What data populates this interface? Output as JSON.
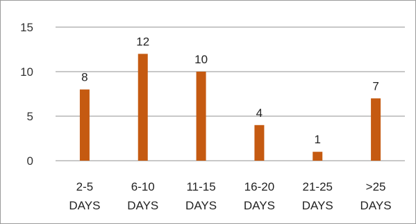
{
  "chart_data": {
    "type": "bar",
    "categories": [
      [
        "2-5",
        "DAYS"
      ],
      [
        "6-10",
        "DAYS"
      ],
      [
        "11-15",
        "DAYS"
      ],
      [
        "16-20",
        "DAYS"
      ],
      [
        "21-25",
        "DAYS"
      ],
      [
        ">25",
        "DAYS"
      ]
    ],
    "values": [
      8,
      12,
      10,
      4,
      1,
      7
    ],
    "ylim": [
      0,
      15
    ],
    "yticks": [
      0,
      5,
      10,
      15
    ],
    "grid": true,
    "bar_color": "#C55A11",
    "grid_color": "#A6A6A6"
  }
}
